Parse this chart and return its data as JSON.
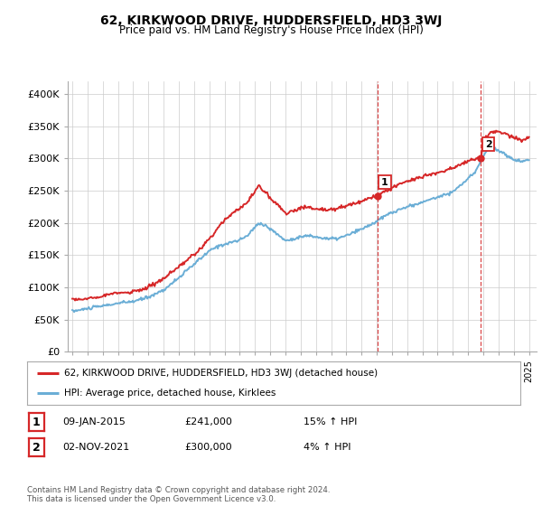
{
  "title": "62, KIRKWOOD DRIVE, HUDDERSFIELD, HD3 3WJ",
  "subtitle": "Price paid vs. HM Land Registry's House Price Index (HPI)",
  "ylabel_ticks": [
    "£0",
    "£50K",
    "£100K",
    "£150K",
    "£200K",
    "£250K",
    "£300K",
    "£350K",
    "£400K"
  ],
  "ytick_values": [
    0,
    50000,
    100000,
    150000,
    200000,
    250000,
    300000,
    350000,
    400000
  ],
  "ylim": [
    0,
    420000
  ],
  "xlim_start": 1994.7,
  "xlim_end": 2025.5,
  "xtick_years": [
    1995,
    1996,
    1997,
    1998,
    1999,
    2000,
    2001,
    2002,
    2003,
    2004,
    2005,
    2006,
    2007,
    2008,
    2009,
    2010,
    2011,
    2012,
    2013,
    2014,
    2015,
    2016,
    2017,
    2018,
    2019,
    2020,
    2021,
    2022,
    2023,
    2024,
    2025
  ],
  "hpi_color": "#6baed6",
  "price_color": "#d62728",
  "marker_color": "#d62728",
  "vline_color": "#d62728",
  "grid_color": "#cccccc",
  "background_color": "#ffffff",
  "legend_label_price": "62, KIRKWOOD DRIVE, HUDDERSFIELD, HD3 3WJ (detached house)",
  "legend_label_hpi": "HPI: Average price, detached house, Kirklees",
  "annotation1_label": "1",
  "annotation1_date": "09-JAN-2015",
  "annotation1_price": "£241,000",
  "annotation1_hpi": "15% ↑ HPI",
  "annotation1_year": 2015.03,
  "annotation1_value": 241000,
  "annotation2_label": "2",
  "annotation2_date": "02-NOV-2021",
  "annotation2_price": "£300,000",
  "annotation2_hpi": "4% ↑ HPI",
  "annotation2_year": 2021.84,
  "annotation2_value": 300000,
  "footer": "Contains HM Land Registry data © Crown copyright and database right 2024.\nThis data is licensed under the Open Government Licence v3.0.",
  "hpi_x": [
    1995.0,
    1995.5,
    1996.0,
    1996.5,
    1997.0,
    1997.5,
    1998.0,
    1998.5,
    1999.0,
    1999.5,
    2000.0,
    2000.5,
    2001.0,
    2001.5,
    2002.0,
    2002.5,
    2003.0,
    2003.5,
    2004.0,
    2004.5,
    2005.0,
    2005.5,
    2006.0,
    2006.5,
    2007.0,
    2007.25,
    2007.75,
    2008.0,
    2008.5,
    2009.0,
    2009.5,
    2010.0,
    2010.5,
    2011.0,
    2011.5,
    2012.0,
    2012.5,
    2013.0,
    2013.5,
    2014.0,
    2014.5,
    2015.0,
    2015.5,
    2016.0,
    2016.5,
    2017.0,
    2017.5,
    2018.0,
    2018.5,
    2019.0,
    2019.5,
    2020.0,
    2020.5,
    2021.0,
    2021.5,
    2022.0,
    2022.5,
    2023.0,
    2023.5,
    2024.0,
    2024.5,
    2025.0
  ],
  "hpi_y": [
    63000,
    64500,
    67000,
    69000,
    71000,
    73000,
    75000,
    76500,
    78000,
    81000,
    85000,
    90000,
    96000,
    105000,
    115000,
    125000,
    136000,
    146000,
    156000,
    163000,
    167000,
    170000,
    173000,
    180000,
    193000,
    200000,
    195000,
    190000,
    182000,
    172000,
    175000,
    178000,
    180000,
    178000,
    176000,
    175000,
    176000,
    180000,
    185000,
    190000,
    196000,
    202000,
    210000,
    216000,
    220000,
    225000,
    228000,
    232000,
    236000,
    240000,
    244000,
    248000,
    258000,
    268000,
    280000,
    305000,
    318000,
    312000,
    305000,
    298000,
    295000,
    298000
  ],
  "price_x": [
    1995.0,
    1995.5,
    1996.0,
    1996.5,
    1997.0,
    1997.5,
    1998.0,
    1998.5,
    1999.0,
    1999.5,
    2000.0,
    2000.5,
    2001.0,
    2001.5,
    2002.0,
    2002.5,
    2003.0,
    2003.5,
    2004.0,
    2004.5,
    2005.0,
    2005.5,
    2006.0,
    2006.5,
    2007.0,
    2007.25,
    2007.75,
    2008.0,
    2008.5,
    2009.0,
    2009.5,
    2010.0,
    2010.5,
    2011.0,
    2011.5,
    2012.0,
    2012.5,
    2013.0,
    2013.5,
    2014.0,
    2014.5,
    2015.0,
    2015.03,
    2015.5,
    2016.0,
    2016.5,
    2017.0,
    2017.5,
    2018.0,
    2018.5,
    2019.0,
    2019.5,
    2020.0,
    2020.5,
    2021.0,
    2021.84,
    2022.0,
    2022.5,
    2023.0,
    2023.5,
    2024.0,
    2024.5,
    2025.0
  ],
  "price_y": [
    80000,
    81000,
    83000,
    85000,
    87000,
    89000,
    91000,
    92000,
    93000,
    96000,
    100000,
    107000,
    113000,
    122000,
    131000,
    141000,
    151000,
    161000,
    175000,
    190000,
    205000,
    215000,
    222000,
    232000,
    248000,
    257000,
    247000,
    238000,
    228000,
    215000,
    218000,
    222000,
    225000,
    222000,
    220000,
    221000,
    223000,
    226000,
    230000,
    235000,
    238000,
    241000,
    241000,
    248000,
    254000,
    260000,
    265000,
    268000,
    272000,
    275000,
    278000,
    281000,
    285000,
    290000,
    296000,
    300000,
    330000,
    340000,
    342000,
    338000,
    332000,
    328000,
    332000
  ]
}
